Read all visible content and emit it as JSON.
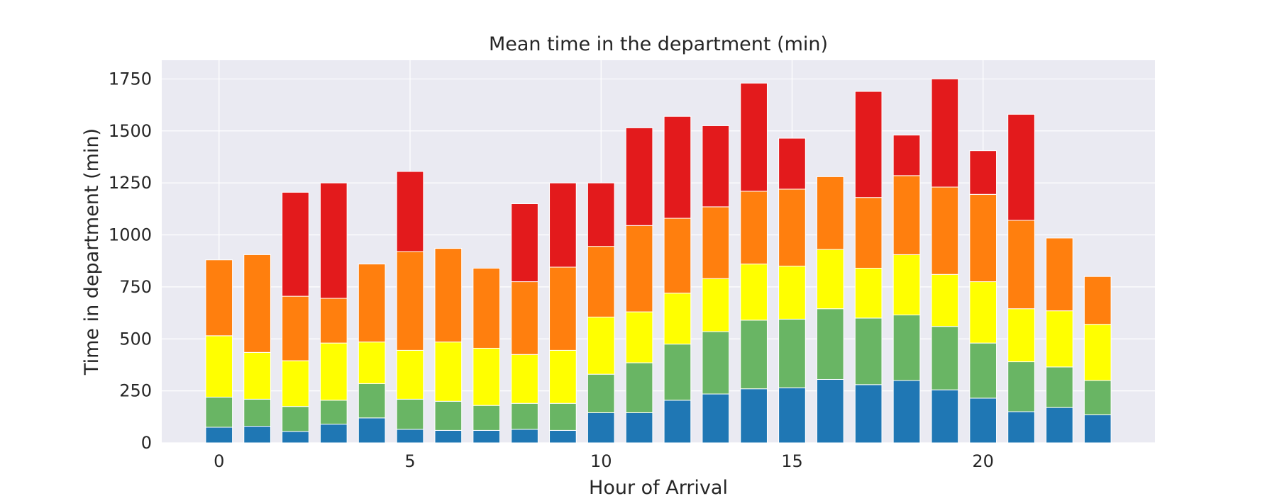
{
  "chart_data": {
    "type": "bar",
    "stacked": true,
    "title": "Mean time in the department (min)",
    "xlabel": "Hour of Arrival",
    "ylabel": "Time in department (min)",
    "x": [
      0,
      1,
      2,
      3,
      4,
      5,
      6,
      7,
      8,
      9,
      10,
      11,
      12,
      13,
      14,
      15,
      16,
      17,
      18,
      19,
      20,
      21,
      22,
      23
    ],
    "xticks": [
      "0",
      "5",
      "10",
      "15",
      "20"
    ],
    "yticks": [
      "0",
      "250",
      "500",
      "750",
      "1000",
      "1250",
      "1500",
      "1750"
    ],
    "xlim": [
      -1.5,
      24.5
    ],
    "ylim": [
      0,
      1840
    ],
    "grid": true,
    "legend": "none",
    "background_color": "#eaeaf2",
    "series": [
      {
        "color": "#1f77b4",
        "values": [
          75,
          80,
          55,
          90,
          120,
          65,
          60,
          60,
          65,
          60,
          145,
          145,
          205,
          235,
          260,
          265,
          305,
          280,
          300,
          255,
          215,
          150,
          170,
          135
        ]
      },
      {
        "color": "#69b564",
        "values": [
          145,
          130,
          120,
          115,
          165,
          145,
          140,
          120,
          125,
          130,
          185,
          240,
          270,
          300,
          330,
          330,
          340,
          320,
          315,
          305,
          265,
          240,
          195,
          165
        ]
      },
      {
        "color": "#ffff00",
        "values": [
          295,
          225,
          220,
          275,
          200,
          235,
          285,
          275,
          235,
          255,
          275,
          245,
          245,
          255,
          270,
          255,
          285,
          240,
          290,
          250,
          295,
          255,
          270,
          270
        ]
      },
      {
        "color": "#ff7f0e",
        "values": [
          365,
          470,
          310,
          215,
          375,
          475,
          450,
          385,
          350,
          400,
          340,
          415,
          360,
          345,
          350,
          370,
          350,
          340,
          380,
          420,
          420,
          425,
          350,
          230
        ]
      },
      {
        "color": "#e31a1c",
        "values": [
          0,
          0,
          500,
          555,
          0,
          385,
          0,
          0,
          375,
          405,
          305,
          470,
          490,
          390,
          520,
          245,
          0,
          510,
          195,
          520,
          210,
          510,
          0,
          0
        ]
      }
    ]
  }
}
